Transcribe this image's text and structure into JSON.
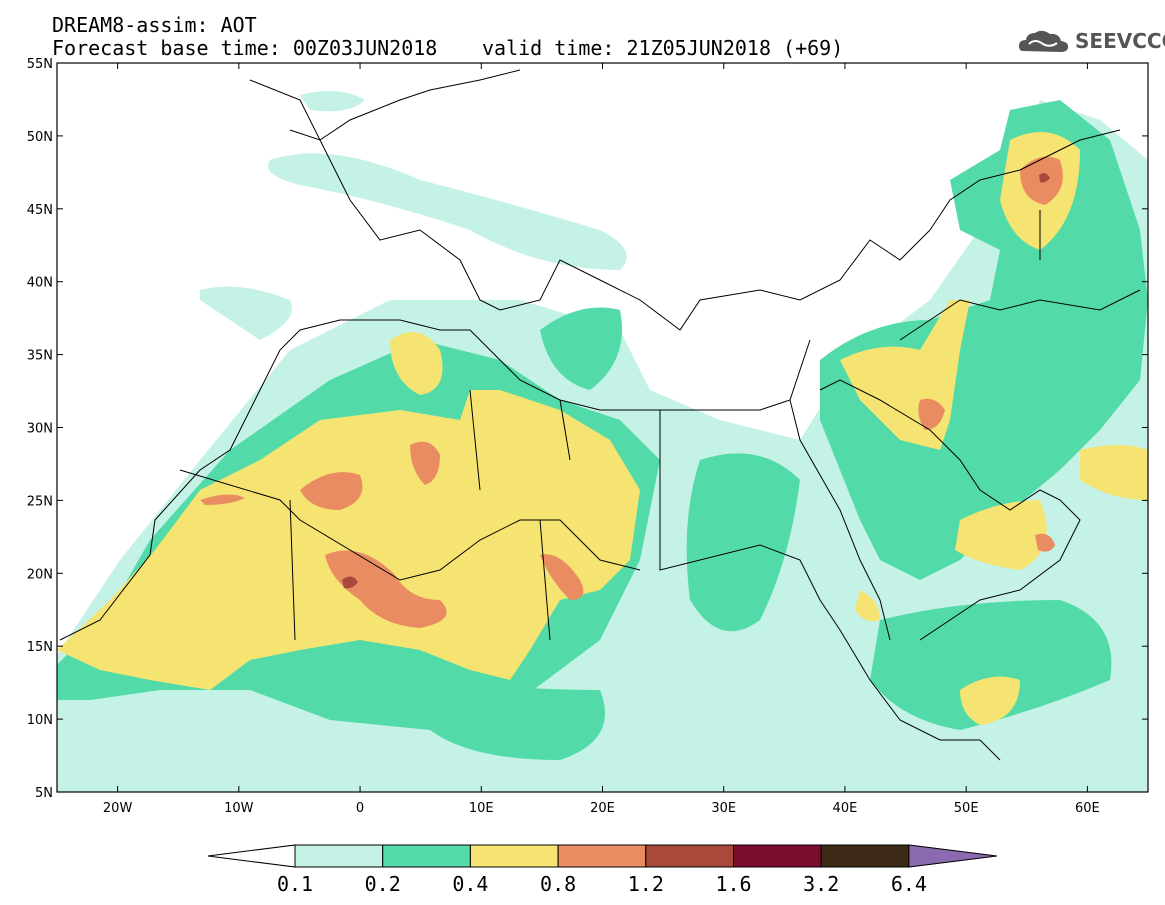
{
  "title": {
    "line1": "DREAM8-assim: AOT",
    "line2": "Forecast base time: 00Z03JUN2018",
    "valid": "valid time: 21Z05JUN2018 (+69)"
  },
  "logo": {
    "text": "SEEVCCC",
    "icon": "cloud-icon"
  },
  "axes": {
    "lon_ticks": [
      "20W",
      "10W",
      "0",
      "10E",
      "20E",
      "30E",
      "40E",
      "50E",
      "60E"
    ],
    "lat_ticks": [
      "55N",
      "50N",
      "45N",
      "40N",
      "35N",
      "30N",
      "25N",
      "20N",
      "15N",
      "10N",
      "5N"
    ],
    "lon_range": [
      -25,
      65
    ],
    "lat_range": [
      5,
      55
    ]
  },
  "colorbar": {
    "labels": [
      "0.1",
      "0.2",
      "0.4",
      "0.8",
      "1.2",
      "1.6",
      "3.2",
      "6.4"
    ],
    "colors": [
      "#c4f2e6",
      "#52dba8",
      "#f5e472",
      "#ea8c62",
      "#a8493a",
      "#7a0d2c",
      "#3d2a16",
      "#8b6bb0"
    ]
  }
}
